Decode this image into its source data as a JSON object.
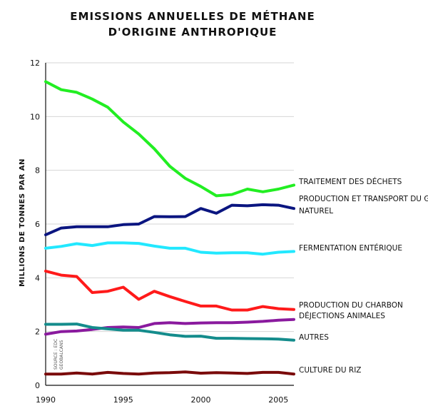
{
  "chart_data": {
    "type": "line",
    "title_lines": [
      "EMISSIONS ANNUELLES DE MÉTHANE",
      "D'ORIGINE ANTHROPIQUE"
    ],
    "ylabel": "MILLIONS DE TONNES PAR AN",
    "xlabel": "",
    "source_note": [
      "SOURCE : EDC",
      "GEOBALCANS"
    ],
    "xlim": [
      1990,
      2006
    ],
    "ylim": [
      0,
      12
    ],
    "x_ticks": [
      1990,
      1995,
      2000,
      2005
    ],
    "y_ticks": [
      0,
      2,
      4,
      6,
      8,
      10,
      12
    ],
    "grid": "horizontal",
    "legend": "inline-right",
    "x": [
      1990,
      1991,
      1992,
      1993,
      1994,
      1995,
      1996,
      1997,
      1998,
      1999,
      2000,
      2001,
      2002,
      2003,
      2004,
      2005,
      2006
    ],
    "series": [
      {
        "name_lines": [
          "TRAITEMENT DES DÉCHETS"
        ],
        "color": "#22ee22",
        "values": [
          11.3,
          11.0,
          10.9,
          10.65,
          10.35,
          9.8,
          9.35,
          8.8,
          8.15,
          7.7,
          7.4,
          7.05,
          7.1,
          7.3,
          7.2,
          7.3,
          7.45
        ]
      },
      {
        "name_lines": [
          "PRODUCTION ET TRANSPORT DU GAZ",
          "NATUREL"
        ],
        "color": "#0a1580",
        "values": [
          5.6,
          5.85,
          5.9,
          5.9,
          5.9,
          5.98,
          6.0,
          6.28,
          6.27,
          6.28,
          6.58,
          6.4,
          6.7,
          6.68,
          6.72,
          6.7,
          6.58
        ]
      },
      {
        "name_lines": [
          "FERMENTATION ENTÉRIQUE"
        ],
        "color": "#22e8ff",
        "values": [
          5.1,
          5.17,
          5.27,
          5.2,
          5.3,
          5.3,
          5.28,
          5.18,
          5.1,
          5.1,
          4.95,
          4.92,
          4.93,
          4.93,
          4.88,
          4.95,
          4.98
        ]
      },
      {
        "name_lines": [
          "PRODUCTION DU CHARBON"
        ],
        "color": "#ff1a1a",
        "values": [
          4.25,
          4.1,
          4.05,
          3.45,
          3.5,
          3.65,
          3.2,
          3.5,
          3.3,
          3.12,
          2.95,
          2.95,
          2.8,
          2.8,
          2.93,
          2.85,
          2.82
        ]
      },
      {
        "name_lines": [
          "DÉJECTIONS ANIMALES"
        ],
        "color": "#8a1a9e",
        "values": [
          1.9,
          2.0,
          2.02,
          2.08,
          2.15,
          2.17,
          2.15,
          2.3,
          2.33,
          2.3,
          2.32,
          2.33,
          2.33,
          2.35,
          2.38,
          2.42,
          2.45
        ]
      },
      {
        "name_lines": [
          "AUTRES"
        ],
        "color": "#148c8c",
        "values": [
          2.27,
          2.27,
          2.28,
          2.15,
          2.1,
          2.05,
          2.05,
          1.97,
          1.88,
          1.82,
          1.83,
          1.75,
          1.75,
          1.74,
          1.73,
          1.72,
          1.68
        ]
      },
      {
        "name_lines": [
          "CULTURE DU RIZ"
        ],
        "color": "#7a0a0a",
        "values": [
          0.42,
          0.42,
          0.46,
          0.42,
          0.48,
          0.44,
          0.42,
          0.46,
          0.47,
          0.5,
          0.45,
          0.47,
          0.46,
          0.44,
          0.48,
          0.48,
          0.42
        ]
      }
    ]
  }
}
